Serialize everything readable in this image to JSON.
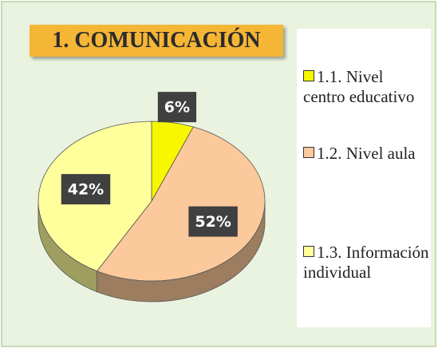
{
  "chart_data": {
    "type": "pie",
    "title": "1. COMUNICACIÓN",
    "categories": [
      "1.1. Nivel centro educativo",
      "1.2. Nivel aula",
      "1.3. Información individual"
    ],
    "values": [
      6,
      52,
      42
    ],
    "value_labels": [
      "6%",
      "52%",
      "42%"
    ],
    "colors": [
      "#f7f700",
      "#fbc99b",
      "#ffff9c"
    ],
    "legend": "right"
  }
}
